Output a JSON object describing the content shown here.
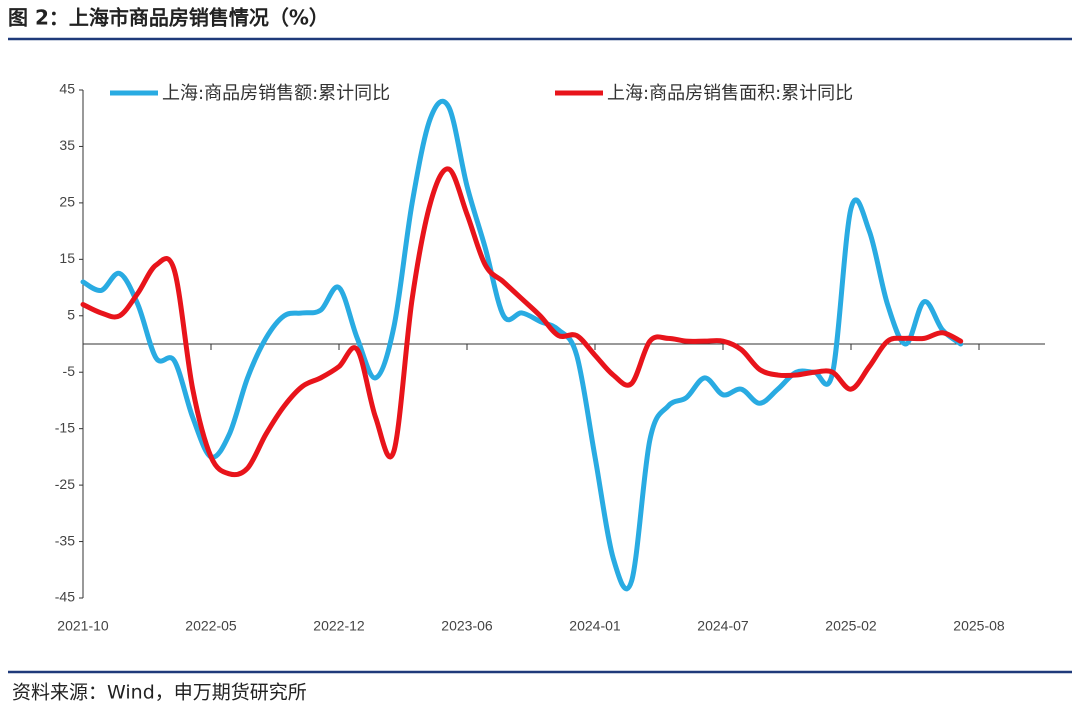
{
  "chart_data": {
    "type": "line",
    "title": "图 2：上海市商品房销售情况（%）",
    "source": "资料来源：Wind，申万期货研究所",
    "categories": [
      "2021-10",
      null,
      null,
      null,
      null,
      null,
      null,
      "2022-05",
      null,
      null,
      null,
      null,
      null,
      null,
      "2022-12",
      null,
      null,
      null,
      null,
      null,
      null,
      "2023-06",
      null,
      null,
      null,
      null,
      null,
      null,
      "2024-01",
      null,
      null,
      null,
      null,
      null,
      null,
      "2024-07",
      null,
      null,
      null,
      null,
      null,
      null,
      "2025-02",
      null,
      null,
      null,
      null,
      null,
      null,
      "2025-08"
    ],
    "series": [
      {
        "name": "上海:商品房销售额:累计同比",
        "color": "#29abe2",
        "values": [
          11,
          9.5,
          12.5,
          7,
          -2.5,
          -3,
          -13,
          -20,
          -16,
          -6,
          1,
          5,
          5.5,
          6,
          10,
          1,
          -6,
          3,
          25,
          40,
          42,
          28,
          17,
          5,
          5.5,
          4,
          2.5,
          -2,
          -20,
          -38,
          -42,
          -17,
          -11,
          -9.5,
          -6,
          -9,
          -8,
          -10.5,
          -8,
          -5,
          -5,
          -5,
          24,
          20,
          7,
          0,
          7.5,
          2.5,
          0,
          null
        ]
      },
      {
        "name": "上海:商品房销售面积:累计同比",
        "color": "#e8141b",
        "values": [
          7,
          5.5,
          5,
          9,
          14,
          13,
          -8,
          -20,
          -23,
          -22,
          -16,
          -11,
          -7.5,
          -6,
          -4,
          -1,
          -13,
          -19,
          8,
          25,
          31,
          23,
          14,
          11,
          8,
          5,
          1.5,
          1.5,
          -2,
          -5.5,
          -7,
          0.5,
          1,
          0.5,
          0.5,
          0.5,
          -1,
          -4.5,
          -5.5,
          -5.5,
          -5,
          -5,
          -8,
          -4,
          0.5,
          1,
          1,
          2,
          0.5,
          null
        ]
      }
    ],
    "ylim": [
      -45,
      45
    ],
    "yticks": [
      45,
      35,
      25,
      15,
      5,
      -5,
      -15,
      -25,
      -35,
      -45
    ]
  }
}
